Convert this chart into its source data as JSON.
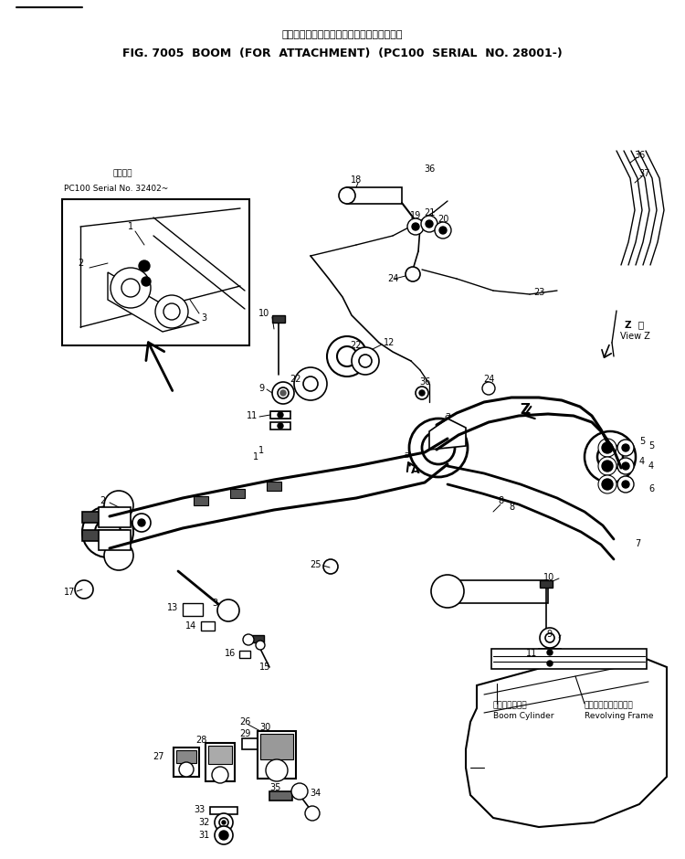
{
  "title_jp": "ブーム　アタッチメント用　　　　適用号機",
  "title_en": "FIG. 7005  BOOM  (FOR  ATTACHMENT)  (PC100  SERIAL  NO. 28001-)",
  "inset_jp": "適用号機",
  "inset_serial": "PC100 Serial No. 32402~",
  "boom_cyl_jp": "ブームシリンダ",
  "boom_cyl_en": "Boom Cylinder",
  "rev_frame_jp": "レボルビングフレーム",
  "rev_frame_en": "Revolving Frame",
  "z_view": "Z  検\nView Z",
  "bg": "#ffffff",
  "lc": "#000000"
}
